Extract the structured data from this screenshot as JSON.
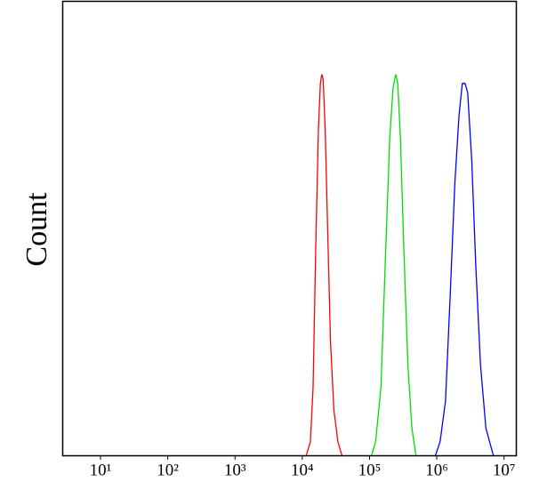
{
  "chart_data": {
    "type": "line",
    "y_label": "Count",
    "x_scale": "log",
    "xlim": [
      2.7,
      15000000
    ],
    "ylim": [
      0,
      100
    ],
    "xticks": [
      {
        "value": 10,
        "label": "10¹"
      },
      {
        "value": 100,
        "label": "10²"
      },
      {
        "value": 1000,
        "label": "10³"
      },
      {
        "value": 10000,
        "label": "10⁴"
      },
      {
        "value": 100000,
        "label": "10⁵"
      },
      {
        "value": 1000000,
        "label": "10⁶"
      },
      {
        "value": 10000000,
        "label": "10⁷"
      }
    ],
    "series": [
      {
        "color": "#ff0000",
        "x": [
          11500,
          13200,
          14500,
          15800,
          17400,
          18600,
          19500,
          20400,
          21900,
          24000,
          26300,
          29500,
          33900,
          38900
        ],
        "values": [
          0,
          3,
          15,
          45,
          72,
          82,
          84,
          83,
          72,
          48,
          25,
          10,
          3,
          0
        ]
      },
      {
        "color": "#00dd00",
        "x": [
          107000,
          123000,
          148000,
          174000,
          200000,
          224000,
          245000,
          263000,
          288000,
          324000,
          372000,
          427000,
          490000
        ],
        "values": [
          0,
          3,
          15,
          45,
          70,
          81,
          84,
          82,
          70,
          45,
          20,
          6,
          0
        ]
      },
      {
        "color": "#0000ff",
        "x": [
          955000,
          1120000,
          1350000,
          1580000,
          1860000,
          2140000,
          2400000,
          2630000,
          2880000,
          3310000,
          3800000,
          4470000,
          5370000,
          6920000
        ],
        "values": [
          0,
          3,
          12,
          35,
          60,
          75,
          82,
          82,
          80,
          65,
          42,
          20,
          6,
          0
        ]
      }
    ]
  }
}
